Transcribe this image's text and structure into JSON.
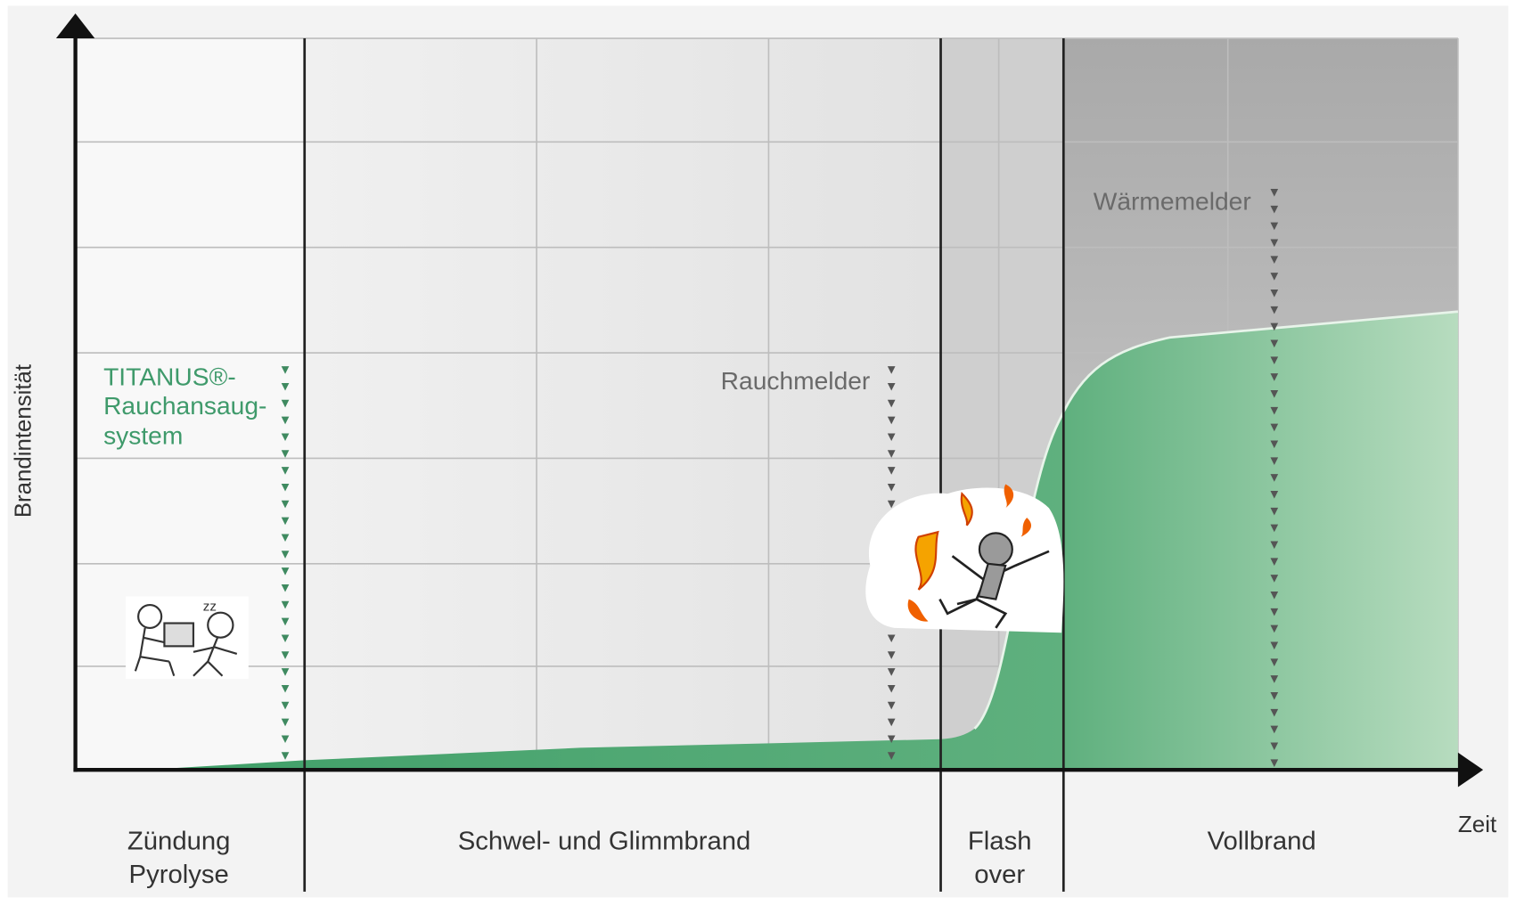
{
  "axes": {
    "y_label": "Brandintensität",
    "x_label": "Zeit"
  },
  "phases": [
    {
      "lines": [
        "Zündung",
        "Pyrolyse"
      ]
    },
    {
      "lines": [
        "Schwel- und Glimmbrand"
      ]
    },
    {
      "lines": [
        "Flash",
        "over"
      ]
    },
    {
      "lines": [
        "Vollbrand"
      ]
    }
  ],
  "detectors": [
    {
      "lines": [
        "TITANUS®-",
        "Rauchansaug-",
        "system"
      ]
    },
    {
      "lines": [
        "Rauchmelder"
      ]
    },
    {
      "lines": [
        "Wärmemelder"
      ]
    }
  ]
}
